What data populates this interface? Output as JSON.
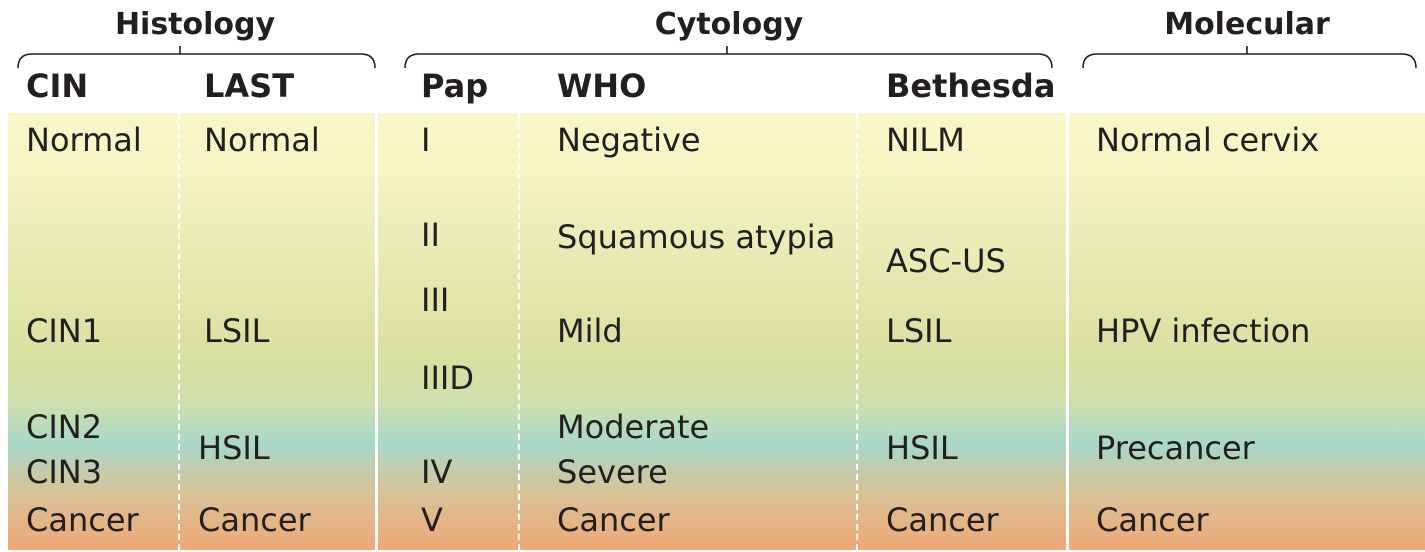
{
  "colors": {
    "band_top": "#f7f7c8",
    "band_mid": "#d9e0a0",
    "band_teal": "#a8d8c8",
    "band_bottom": "#f0a877",
    "bracket": "#231f20",
    "separator": "#ffffff"
  },
  "groups": {
    "histology": "Histology",
    "cytology": "Cytology",
    "molecular": "Molecular"
  },
  "columns": {
    "cin": "CIN",
    "last": "LAST",
    "pap": "Pap",
    "who": "WHO",
    "bethesda": "Bethesda"
  },
  "cells": {
    "cin": [
      "Normal",
      "CIN1",
      "CIN2",
      "CIN3",
      "Cancer"
    ],
    "last": [
      "Normal",
      "LSIL",
      "HSIL",
      "Cancer"
    ],
    "pap": [
      "I",
      "II",
      "III",
      "IIID",
      "IV",
      "V"
    ],
    "who": [
      "Negative",
      "Squamous atypia",
      "Mild",
      "Moderate",
      "Severe",
      "Cancer"
    ],
    "bethesda": [
      "NILM",
      "ASC-US",
      "LSIL",
      "HSIL",
      "Cancer"
    ],
    "molecular": [
      "Normal cervix",
      "HPV infection",
      "Precancer",
      "Cancer"
    ]
  }
}
